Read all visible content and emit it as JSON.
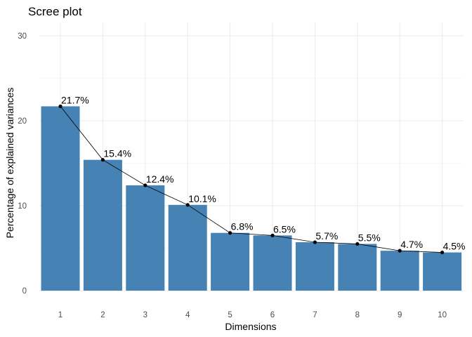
{
  "chart_data": {
    "type": "bar",
    "title": "Scree plot",
    "xlabel": "Dimensions",
    "ylabel": "Percentage of explained variances",
    "categories": [
      "1",
      "2",
      "3",
      "4",
      "5",
      "6",
      "7",
      "8",
      "9",
      "10"
    ],
    "values": [
      21.7,
      15.4,
      12.4,
      10.1,
      6.8,
      6.5,
      5.7,
      5.5,
      4.7,
      4.5
    ],
    "data_labels": [
      "21.7%",
      "15.4%",
      "12.4%",
      "10.1%",
      "6.8%",
      "6.5%",
      "5.7%",
      "5.5%",
      "4.7%",
      "4.5%"
    ],
    "overlay": "line-with-points",
    "ylim": [
      0,
      30
    ],
    "yticks": [
      0,
      10,
      20,
      30
    ],
    "grid": true,
    "legend": "none",
    "colors": {
      "bar": "#4682b4",
      "line": "#000000"
    }
  }
}
